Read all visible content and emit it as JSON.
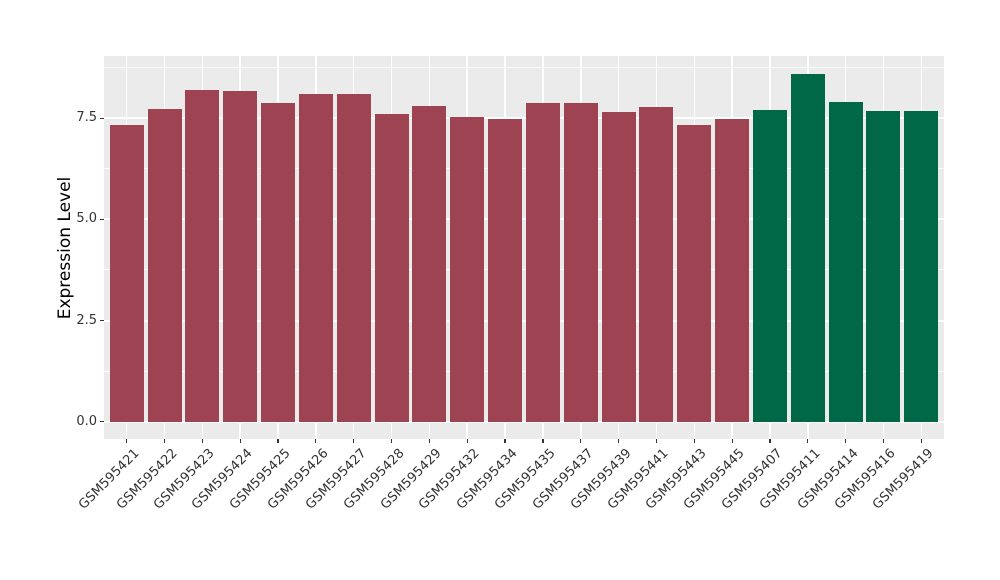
{
  "chart_data": {
    "type": "bar",
    "title": "",
    "xlabel": "",
    "ylabel": "Expression Level",
    "categories": [
      "GSM595421",
      "GSM595422",
      "GSM595423",
      "GSM595424",
      "GSM595425",
      "GSM595426",
      "GSM595427",
      "GSM595428",
      "GSM595429",
      "GSM595432",
      "GSM595434",
      "GSM595435",
      "GSM595437",
      "GSM595439",
      "GSM595441",
      "GSM595443",
      "GSM595445",
      "GSM595407",
      "GSM595411",
      "GSM595414",
      "GSM595416",
      "GSM595419"
    ],
    "values": [
      7.34,
      7.72,
      8.2,
      8.17,
      7.89,
      8.09,
      8.11,
      7.61,
      7.8,
      7.54,
      7.48,
      7.87,
      7.87,
      7.66,
      7.78,
      7.33,
      7.48,
      7.71,
      8.6,
      7.9,
      7.69,
      7.68
    ],
    "bar_groups": [
      "group1",
      "group1",
      "group1",
      "group1",
      "group1",
      "group1",
      "group1",
      "group1",
      "group1",
      "group1",
      "group1",
      "group1",
      "group1",
      "group1",
      "group1",
      "group1",
      "group1",
      "group2",
      "group2",
      "group2",
      "group2",
      "group2"
    ],
    "colors": {
      "group1": "#9D4351",
      "group2": "#006847"
    },
    "y_tick_labels": [
      "0.0",
      "2.5",
      "5.0",
      "7.5"
    ],
    "y_tick_values": [
      0,
      2.5,
      5.0,
      7.5
    ],
    "y_minor_tick_values": [
      1.25,
      3.75,
      6.25,
      8.75
    ],
    "ylim": [
      -0.43,
      9.04
    ],
    "grid": "major-and-minor",
    "legend": "none",
    "panel_bg": "#EBEBEB",
    "grid_color": "#FFFFFF",
    "tick_color": "#333333",
    "axis_title_color": "#000000"
  }
}
